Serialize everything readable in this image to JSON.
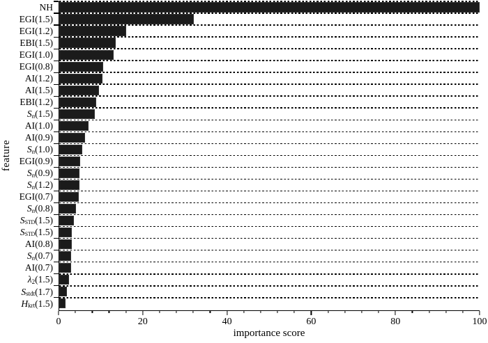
{
  "chart_data": {
    "type": "bar",
    "orientation": "horizontal",
    "title": "",
    "xlabel": "importance score",
    "ylabel": "feature",
    "xlim": [
      0,
      100
    ],
    "x_major_ticks": [
      0,
      20,
      40,
      60,
      80,
      100
    ],
    "x_minor_tick_step": 4,
    "grid": "horizontal-dotted",
    "legend": "none",
    "bar_color": "#1b1b1b",
    "background_color": "#ffffff",
    "categories": [
      "NH",
      "EGI(1.5)",
      "EGI(1.2)",
      "EBI(1.5)",
      "EGI(1.0)",
      "EGI(0.8)",
      "AI(1.2)",
      "AI(1.5)",
      "EBI(1.2)",
      "S_n(1.5)",
      "AI(1.0)",
      "AI(0.9)",
      "S_n(1.0)",
      "EGI(0.9)",
      "S_n(0.9)",
      "S_n(1.2)",
      "EGI(0.7)",
      "S_n(0.8)",
      "S_STD(1.5)",
      "S_STD(1.5)",
      "AI(0.8)",
      "S_n(0.7)",
      "AI(0.7)",
      "lambda_2(1.5)",
      "S_stdt(1.7)",
      "H_krt(1.5)"
    ],
    "values": [
      100,
      32,
      16,
      13.4,
      13.0,
      10.5,
      10.3,
      9.4,
      8.8,
      8.4,
      7.0,
      6.1,
      5.5,
      5.0,
      4.8,
      4.8,
      4.6,
      3.9,
      3.4,
      3.0,
      3.0,
      2.9,
      2.8,
      2.4,
      1.8,
      1.5
    ],
    "category_parts": [
      {
        "base": "NH",
        "sub": "",
        "paren": "",
        "italic": false,
        "sub_italic": false,
        "sub_small": false
      },
      {
        "base": "EGI",
        "sub": "",
        "paren": "(1.5)",
        "italic": false,
        "sub_italic": false,
        "sub_small": false
      },
      {
        "base": "EGI",
        "sub": "",
        "paren": "(1.2)",
        "italic": false,
        "sub_italic": false,
        "sub_small": false
      },
      {
        "base": "EBI",
        "sub": "",
        "paren": "(1.5)",
        "italic": false,
        "sub_italic": false,
        "sub_small": false
      },
      {
        "base": "EGI",
        "sub": "",
        "paren": "(1.0)",
        "italic": false,
        "sub_italic": false,
        "sub_small": false
      },
      {
        "base": "EGI",
        "sub": "",
        "paren": "(0.8)",
        "italic": false,
        "sub_italic": false,
        "sub_small": false
      },
      {
        "base": "AI",
        "sub": "",
        "paren": "(1.2)",
        "italic": false,
        "sub_italic": false,
        "sub_small": false
      },
      {
        "base": "AI",
        "sub": "",
        "paren": "(1.5)",
        "italic": false,
        "sub_italic": false,
        "sub_small": false
      },
      {
        "base": "EBI",
        "sub": "",
        "paren": "(1.2)",
        "italic": false,
        "sub_italic": false,
        "sub_small": false
      },
      {
        "base": "S",
        "sub": "n",
        "paren": "(1.5)",
        "italic": true,
        "sub_italic": true,
        "sub_small": false
      },
      {
        "base": "AI",
        "sub": "",
        "paren": "(1.0)",
        "italic": false,
        "sub_italic": false,
        "sub_small": false
      },
      {
        "base": "AI",
        "sub": "",
        "paren": "(0.9)",
        "italic": false,
        "sub_italic": false,
        "sub_small": false
      },
      {
        "base": "S",
        "sub": "n",
        "paren": "(1.0)",
        "italic": true,
        "sub_italic": true,
        "sub_small": false
      },
      {
        "base": "EGI",
        "sub": "",
        "paren": "(0.9)",
        "italic": false,
        "sub_italic": false,
        "sub_small": false
      },
      {
        "base": "S",
        "sub": "n",
        "paren": "(0.9)",
        "italic": true,
        "sub_italic": true,
        "sub_small": false
      },
      {
        "base": "S",
        "sub": "n",
        "paren": "(1.2)",
        "italic": true,
        "sub_italic": true,
        "sub_small": false
      },
      {
        "base": "EGI",
        "sub": "",
        "paren": "(0.7)",
        "italic": false,
        "sub_italic": false,
        "sub_small": false
      },
      {
        "base": "S",
        "sub": "n",
        "paren": "(0.8)",
        "italic": true,
        "sub_italic": true,
        "sub_small": false
      },
      {
        "base": "S",
        "sub": "STD",
        "paren": "(1.5)",
        "italic": true,
        "sub_italic": false,
        "sub_small": true
      },
      {
        "base": "S",
        "sub": "STD",
        "paren": "(1.5)",
        "italic": true,
        "sub_italic": false,
        "sub_small": true
      },
      {
        "base": "AI",
        "sub": "",
        "paren": "(0.8)",
        "italic": false,
        "sub_italic": false,
        "sub_small": false
      },
      {
        "base": "S",
        "sub": "n",
        "paren": "(0.7)",
        "italic": true,
        "sub_italic": true,
        "sub_small": false
      },
      {
        "base": "AI",
        "sub": "",
        "paren": "(0.7)",
        "italic": false,
        "sub_italic": false,
        "sub_small": false
      },
      {
        "base": "λ",
        "sub": "2",
        "paren": "(1.5)",
        "italic": true,
        "sub_italic": false,
        "sub_small": false
      },
      {
        "base": "S",
        "sub": "stdt",
        "paren": "(1.7)",
        "italic": true,
        "sub_italic": false,
        "sub_small": false
      },
      {
        "base": "H",
        "sub": "krt",
        "paren": "(1.5)",
        "italic": true,
        "sub_italic": false,
        "sub_small": false
      }
    ]
  }
}
